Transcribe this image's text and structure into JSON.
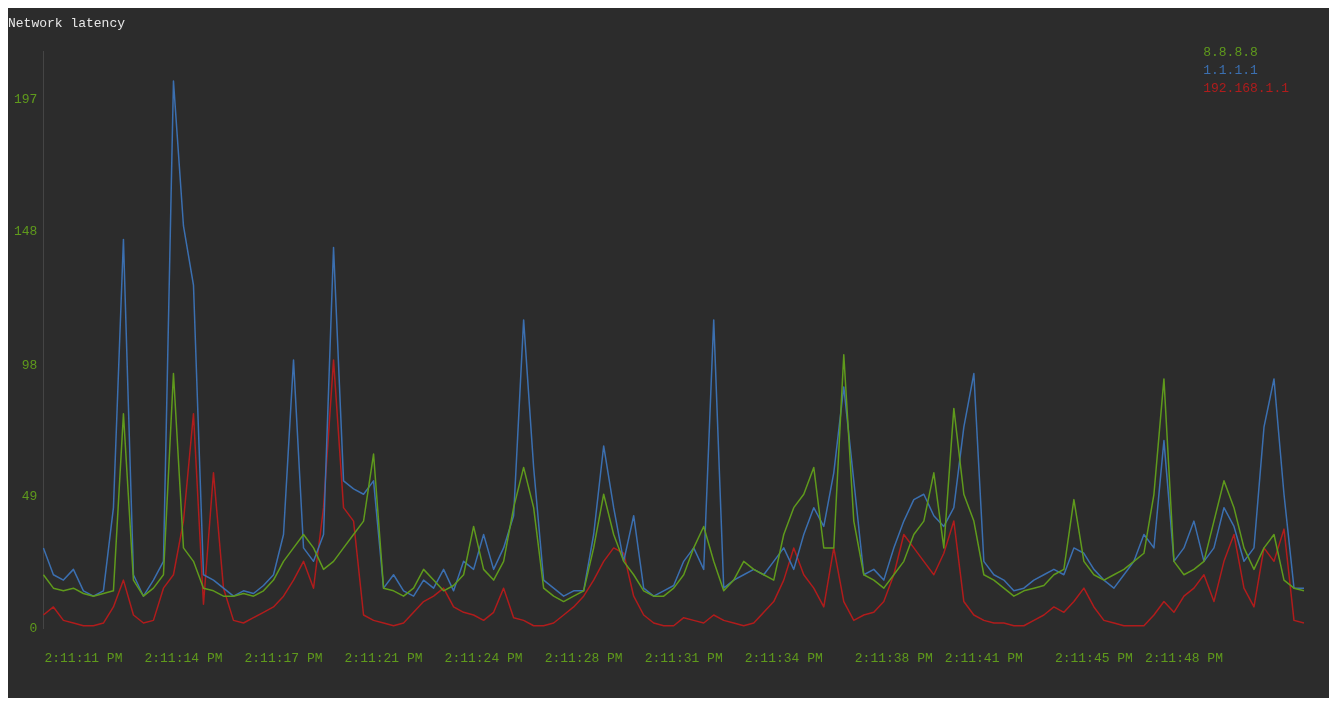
{
  "chart_data": {
    "type": "line",
    "title": "Network latency",
    "categories": [
      null,
      null,
      null,
      null,
      "2:11:11 PM",
      null,
      null,
      null,
      null,
      null,
      null,
      null,
      null,
      null,
      "2:11:14 PM",
      null,
      null,
      null,
      null,
      null,
      null,
      null,
      null,
      null,
      "2:11:17 PM",
      null,
      null,
      null,
      null,
      null,
      null,
      null,
      null,
      null,
      "2:11:21 PM",
      null,
      null,
      null,
      null,
      null,
      null,
      null,
      null,
      null,
      "2:11:24 PM",
      null,
      null,
      null,
      null,
      null,
      null,
      null,
      null,
      null,
      "2:11:28 PM",
      null,
      null,
      null,
      null,
      null,
      null,
      null,
      null,
      null,
      "2:11:31 PM",
      null,
      null,
      null,
      null,
      null,
      null,
      null,
      null,
      null,
      "2:11:34 PM",
      null,
      null,
      null,
      null,
      null,
      null,
      null,
      null,
      null,
      null,
      "2:11:38 PM",
      null,
      null,
      null,
      null,
      null,
      null,
      null,
      null,
      "2:11:41 PM",
      null,
      null,
      null,
      null,
      null,
      null,
      null,
      null,
      null,
      null,
      "2:11:45 PM",
      null,
      null,
      null,
      null,
      null,
      null,
      null,
      null,
      "2:11:48 PM",
      null,
      null,
      null,
      null,
      null,
      null,
      null,
      null,
      null,
      null,
      null,
      null
    ],
    "ylim": [
      0,
      215
    ],
    "yticks": [
      0,
      49,
      98,
      148,
      197
    ],
    "grid": false,
    "legend": "top right",
    "marker": "none",
    "line_style": "solid",
    "series": [
      {
        "name": "8.8.8.8",
        "color": "#5f9a1c",
        "values": [
          20,
          15,
          14,
          15,
          13,
          12,
          13,
          14,
          80,
          18,
          12,
          15,
          20,
          95,
          30,
          25,
          15,
          14,
          12,
          12,
          13,
          12,
          14,
          18,
          25,
          30,
          35,
          30,
          22,
          25,
          30,
          35,
          40,
          65,
          15,
          14,
          12,
          15,
          22,
          18,
          14,
          16,
          20,
          38,
          22,
          18,
          25,
          45,
          60,
          45,
          15,
          12,
          10,
          12,
          14,
          30,
          50,
          35,
          25,
          20,
          14,
          12,
          12,
          15,
          20,
          30,
          38,
          25,
          14,
          18,
          25,
          22,
          20,
          18,
          35,
          45,
          50,
          60,
          30,
          30,
          102,
          40,
          20,
          18,
          15,
          20,
          25,
          35,
          40,
          58,
          30,
          82,
          50,
          40,
          20,
          18,
          15,
          12,
          14,
          15,
          16,
          20,
          22,
          48,
          25,
          20,
          18,
          20,
          22,
          25,
          28,
          50,
          93,
          25,
          20,
          22,
          25,
          40,
          55,
          45,
          30,
          22,
          30,
          35,
          18,
          15,
          14
        ]
      },
      {
        "name": "1.1.1.1",
        "color": "#3b6fb0",
        "values": [
          30,
          20,
          18,
          22,
          14,
          12,
          14,
          45,
          145,
          20,
          12,
          18,
          25,
          204,
          150,
          128,
          20,
          18,
          15,
          12,
          14,
          13,
          16,
          20,
          35,
          100,
          30,
          25,
          35,
          142,
          55,
          52,
          50,
          55,
          15,
          20,
          14,
          12,
          18,
          15,
          22,
          14,
          25,
          22,
          35,
          22,
          30,
          42,
          115,
          60,
          18,
          15,
          12,
          14,
          14,
          35,
          68,
          45,
          25,
          42,
          15,
          12,
          14,
          16,
          25,
          30,
          22,
          115,
          15,
          18,
          20,
          22,
          20,
          25,
          30,
          22,
          35,
          45,
          38,
          58,
          90,
          55,
          20,
          22,
          18,
          30,
          40,
          48,
          50,
          42,
          38,
          45,
          75,
          95,
          25,
          20,
          18,
          14,
          15,
          18,
          20,
          22,
          20,
          30,
          28,
          22,
          18,
          15,
          20,
          25,
          35,
          30,
          70,
          25,
          30,
          40,
          25,
          30,
          45,
          38,
          25,
          30,
          75,
          93,
          50,
          15,
          15
        ]
      },
      {
        "name": "192.168.1.1",
        "color": "#b01c1c",
        "values": [
          5,
          8,
          3,
          2,
          1,
          1,
          2,
          8,
          18,
          5,
          2,
          3,
          15,
          20,
          40,
          80,
          9,
          58,
          15,
          3,
          2,
          4,
          6,
          8,
          12,
          18,
          25,
          15,
          45,
          100,
          45,
          40,
          5,
          3,
          2,
          1,
          2,
          6,
          10,
          12,
          15,
          8,
          6,
          5,
          3,
          6,
          15,
          4,
          3,
          1,
          1,
          2,
          5,
          8,
          12,
          18,
          25,
          30,
          28,
          12,
          5,
          2,
          1,
          1,
          4,
          3,
          2,
          5,
          3,
          2,
          1,
          2,
          6,
          10,
          18,
          30,
          20,
          15,
          8,
          30,
          10,
          3,
          5,
          6,
          10,
          20,
          35,
          30,
          25,
          20,
          28,
          40,
          10,
          5,
          3,
          2,
          2,
          1,
          1,
          3,
          5,
          8,
          6,
          10,
          15,
          8,
          3,
          2,
          1,
          1,
          1,
          5,
          10,
          6,
          12,
          15,
          20,
          10,
          25,
          35,
          15,
          8,
          30,
          25,
          37,
          3,
          2
        ]
      }
    ]
  }
}
